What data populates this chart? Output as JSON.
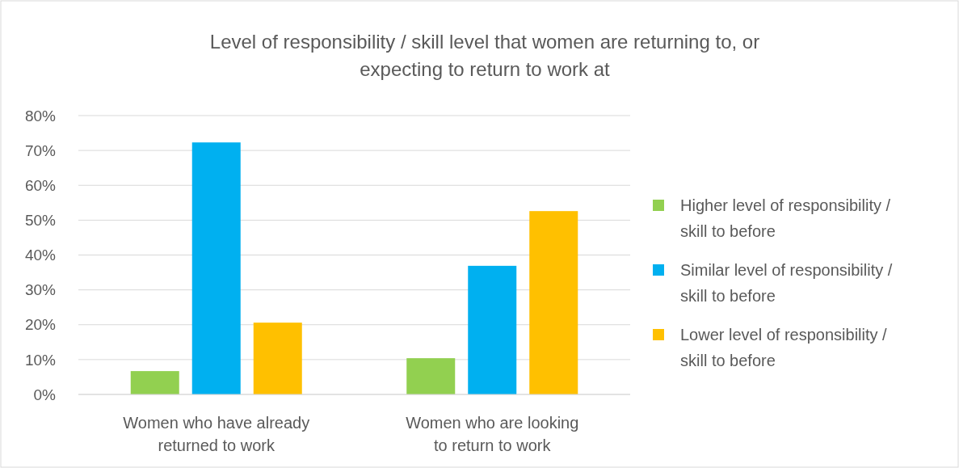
{
  "chart_data": {
    "type": "bar",
    "title": "Level of responsibility / skill level that women are returning to, or expecting to return to work at",
    "categories": [
      "Women who have already returned to work",
      "Women who are looking to return to work"
    ],
    "series": [
      {
        "name": "Higher level of responsibility / skill to before",
        "color": "#92d050",
        "values": [
          6.7,
          10.4
        ]
      },
      {
        "name": "Similar level of responsibility / skill to before",
        "color": "#00b0f0",
        "values": [
          72.3,
          36.9
        ]
      },
      {
        "name": "Lower level of responsibility / skill to before",
        "color": "#ffc000",
        "values": [
          20.6,
          52.6
        ]
      }
    ],
    "ylim": [
      0,
      80
    ],
    "yticks": [
      {
        "value": 0,
        "label": "0%"
      },
      {
        "value": 10,
        "label": "10%"
      },
      {
        "value": 20,
        "label": "20%"
      },
      {
        "value": 30,
        "label": "30%"
      },
      {
        "value": 40,
        "label": "40%"
      },
      {
        "value": 50,
        "label": "50%"
      },
      {
        "value": 60,
        "label": "60%"
      },
      {
        "value": 70,
        "label": "70%"
      },
      {
        "value": 80,
        "label": "80%"
      }
    ],
    "grid": "y",
    "legend": "right"
  }
}
